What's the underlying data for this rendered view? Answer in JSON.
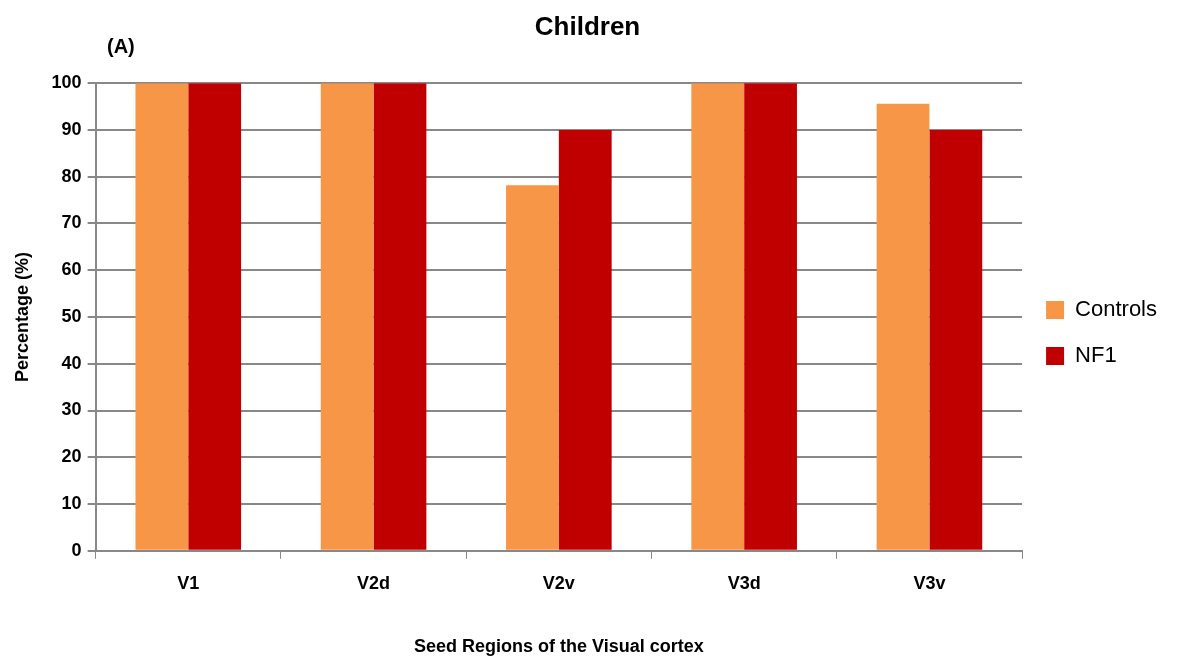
{
  "chart_data": {
    "type": "bar",
    "title": "Children",
    "xlabel": "Seed Regions of the Visual cortex",
    "ylabel": "Percentage (%)",
    "annotations": [
      "(A)"
    ],
    "categories": [
      "V1",
      "V2d",
      "V2v",
      "V3d",
      "V3v"
    ],
    "series": [
      {
        "name": "Controls",
        "color": "#f79646",
        "values": [
          100,
          100,
          78.2,
          100,
          95.6
        ]
      },
      {
        "name": "NF1",
        "color": "#c00000",
        "values": [
          100,
          100,
          90,
          100,
          90
        ]
      }
    ],
    "ylim": [
      0,
      100
    ],
    "yticks": [
      0,
      10,
      20,
      30,
      40,
      50,
      60,
      70,
      80,
      90,
      100
    ],
    "grid": "y",
    "legend": "right"
  }
}
